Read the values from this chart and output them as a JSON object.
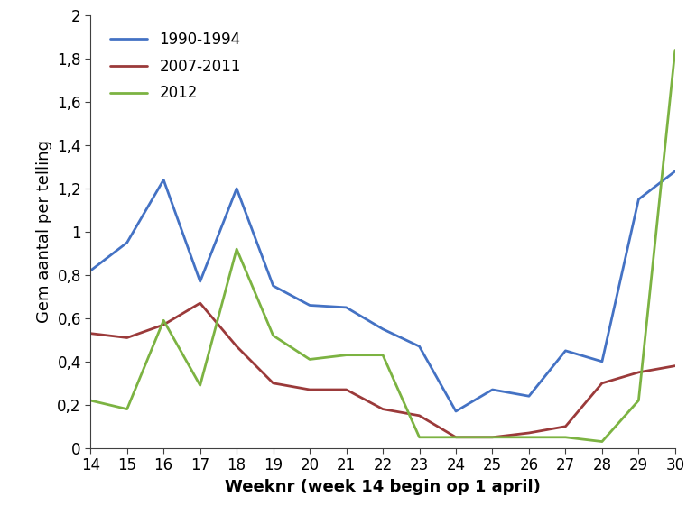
{
  "weeks": [
    14,
    15,
    16,
    17,
    18,
    19,
    20,
    21,
    22,
    23,
    24,
    25,
    26,
    27,
    28,
    29,
    30
  ],
  "series": [
    {
      "label": "1990-1994",
      "color": "#4472C4",
      "values": [
        0.82,
        0.95,
        1.24,
        0.77,
        1.2,
        0.75,
        0.66,
        0.65,
        0.55,
        0.47,
        0.17,
        0.27,
        0.24,
        0.45,
        0.4,
        1.15,
        1.28
      ]
    },
    {
      "label": "2007-2011",
      "color": "#9B3A3A",
      "values": [
        0.53,
        0.51,
        0.57,
        0.67,
        0.47,
        0.3,
        0.27,
        0.27,
        0.18,
        0.15,
        0.05,
        0.05,
        0.07,
        0.1,
        0.3,
        0.35,
        0.38
      ]
    },
    {
      "label": "2012",
      "color": "#7CB342",
      "values": [
        0.22,
        0.18,
        0.59,
        0.29,
        0.92,
        0.52,
        0.41,
        0.43,
        0.43,
        0.05,
        0.05,
        0.05,
        0.05,
        0.05,
        0.03,
        0.22,
        1.84
      ]
    }
  ],
  "xlabel": "Weeknr (week 14 begin op 1 april)",
  "ylabel": "Gem aantal per telling",
  "ylim": [
    0,
    2.0
  ],
  "yticks": [
    0,
    0.2,
    0.4,
    0.6,
    0.8,
    1.0,
    1.2,
    1.4,
    1.6,
    1.8,
    2.0
  ],
  "ytick_labels": [
    "0",
    "0,2",
    "0,4",
    "0,6",
    "0,8",
    "1",
    "1,2",
    "1,4",
    "1,6",
    "1,8",
    "2"
  ],
  "background_color": "#ffffff",
  "axis_fontsize": 13,
  "tick_fontsize": 12,
  "legend_fontsize": 12,
  "line_width": 2.0
}
